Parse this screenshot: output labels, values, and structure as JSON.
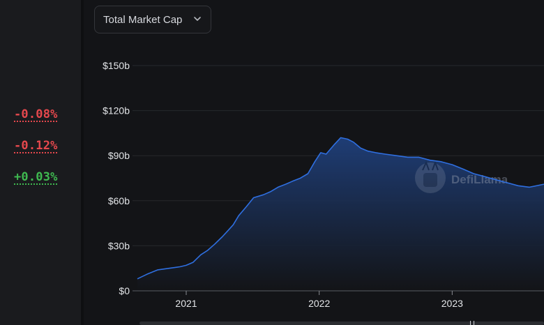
{
  "dropdown": {
    "label": "Total Market Cap"
  },
  "changes": [
    {
      "text": "-0.08%",
      "color": "#e5484d"
    },
    {
      "text": "-0.12%",
      "color": "#e5484d"
    },
    {
      "text": "+0.03%",
      "color": "#3fb950"
    }
  ],
  "watermark": {
    "text": "DefiLlama"
  },
  "colors": {
    "line": "#2f6fe0",
    "area_top": "#1f3f7a",
    "area_bottom": "#131417",
    "negative": "#e5484d",
    "positive": "#3fb950"
  },
  "chart_data": {
    "type": "area",
    "title": "",
    "xlabel": "",
    "ylabel": "",
    "xlim": [
      "2020-08-20",
      "2023-09-10"
    ],
    "ylim": [
      0,
      150
    ],
    "y_unit": "b",
    "y_ticks": [
      0,
      30,
      60,
      90,
      120,
      150
    ],
    "y_tick_labels": [
      "$0",
      "$30b",
      "$60b",
      "$90b",
      "$120b",
      "$150b"
    ],
    "x_ticks": [
      "2021-01-01",
      "2022-01-01",
      "2023-01-01"
    ],
    "x_tick_labels": [
      "2021",
      "2022",
      "2023"
    ],
    "grid": true,
    "series": [
      {
        "x": [
          "2020-08-20",
          "2020-09-15",
          "2020-10-15",
          "2020-11-15",
          "2020-12-15",
          "2021-01-01",
          "2021-01-20",
          "2021-02-10",
          "2021-03-01",
          "2021-03-20",
          "2021-04-10",
          "2021-04-25",
          "2021-05-10",
          "2021-05-25",
          "2021-06-15",
          "2021-07-05",
          "2021-08-01",
          "2021-08-20",
          "2021-09-10",
          "2021-10-01",
          "2021-10-20",
          "2021-11-10",
          "2021-12-01",
          "2021-12-20",
          "2022-01-05",
          "2022-01-20",
          "2022-02-10",
          "2022-03-01",
          "2022-03-20",
          "2022-04-05",
          "2022-04-25",
          "2022-05-15",
          "2022-06-05",
          "2022-07-01",
          "2022-08-01",
          "2022-09-01",
          "2022-10-01",
          "2022-11-01",
          "2022-12-01",
          "2023-01-01",
          "2023-02-01",
          "2023-03-01",
          "2023-04-01",
          "2023-05-01",
          "2023-06-01",
          "2023-07-01",
          "2023-08-01",
          "2023-09-10"
        ],
        "values": [
          8,
          11,
          14,
          15,
          16,
          17,
          19,
          24,
          27,
          31,
          36,
          40,
          44,
          50,
          56,
          62,
          64,
          66,
          69,
          71,
          73,
          75,
          78,
          86,
          92,
          91,
          97,
          102,
          101,
          99,
          95,
          93,
          92,
          91,
          90,
          89,
          89,
          87,
          86,
          84,
          81,
          78,
          76,
          74,
          72,
          70,
          69,
          71
        ]
      }
    ]
  }
}
